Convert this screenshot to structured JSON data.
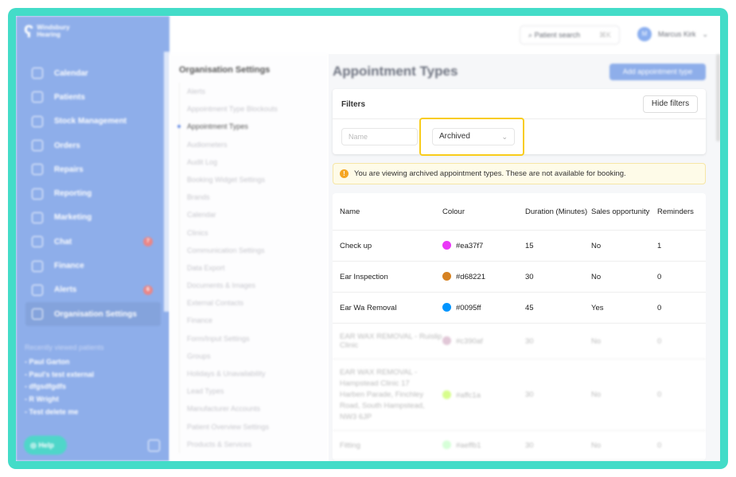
{
  "brand": {
    "name_line1": "Windsbury",
    "name_line2": "Hearing"
  },
  "sidebar": {
    "items": [
      {
        "label": "Calendar",
        "icon": "calendar-icon"
      },
      {
        "label": "Patients",
        "icon": "smile-icon"
      },
      {
        "label": "Stock Management",
        "icon": "box-icon"
      },
      {
        "label": "Orders",
        "icon": "inbox-icon"
      },
      {
        "label": "Repairs",
        "icon": "wrench-icon"
      },
      {
        "label": "Reporting",
        "icon": "pie-chart-icon"
      },
      {
        "label": "Marketing",
        "icon": "mail-icon"
      },
      {
        "label": "Chat",
        "icon": "chat-icon",
        "badge": "7"
      },
      {
        "label": "Finance",
        "icon": "credit-card-icon"
      },
      {
        "label": "Alerts",
        "icon": "bell-icon",
        "badge": "6"
      },
      {
        "label": "Organisation Settings",
        "icon": "gear-icon",
        "active": true
      }
    ],
    "recent_title": "Recently viewed patients",
    "recent": [
      "- Paul Garton",
      "- Paul's test external",
      "- dfgsdfgdfs",
      "- R Wright",
      "- Test delete me"
    ],
    "help": "Help"
  },
  "header": {
    "search_label": "Patient search",
    "search_shortcut": "⌘K",
    "user_initial": "M",
    "user_name": "Marcus Kirk"
  },
  "settings": {
    "title": "Organisation Settings",
    "items": [
      "Alerts",
      "Appointment Type Blockouts",
      "Appointment Types",
      "Audiometers",
      "Audit Log",
      "Booking Widget Settings",
      "Brands",
      "Calendar",
      "Clinics",
      "Communication Settings",
      "Data Export",
      "Documents & Images",
      "External Contacts",
      "Finance",
      "Form/Input Settings",
      "Groups",
      "Holidays & Unavailability",
      "Lead Types",
      "Manufacturer Accounts",
      "Patient Overview Settings",
      "Products & Services"
    ],
    "active": "Appointment Types"
  },
  "main": {
    "title": "Appointment Types",
    "add_button": "Add appointment type",
    "filters": {
      "label": "Filters",
      "hide_button": "Hide filters",
      "name_placeholder": "Name",
      "status_value": "Archived"
    },
    "warning": "You are viewing archived appointment types. These are not available for booking.",
    "columns": [
      "Name",
      "Colour",
      "Duration (Minutes)",
      "Sales opportunity",
      "Reminders"
    ],
    "rows": [
      {
        "name": "Check up",
        "colour": "#ea37f7",
        "duration": "15",
        "sales": "No",
        "reminders": "1"
      },
      {
        "name": "Ear Inspection",
        "colour": "#d68221",
        "duration": "30",
        "sales": "No",
        "reminders": "0"
      },
      {
        "name": "Ear Wa Removal",
        "colour": "#0095ff",
        "duration": "45",
        "sales": "Yes",
        "reminders": "0"
      },
      {
        "name": "EAR WAX REMOVAL - Ruislip Clinic",
        "colour": "#c390af",
        "duration": "30",
        "sales": "No",
        "reminders": "0"
      },
      {
        "name": "EAR WAX REMOVAL - Hampstead Clinic 17 Harben Parade, Finchley Road, South Hampstead, NW3 6JP",
        "colour": "#affc1a",
        "duration": "30",
        "sales": "No",
        "reminders": "0"
      },
      {
        "name": "Fitting",
        "colour": "#aeffb1",
        "duration": "30",
        "sales": "No",
        "reminders": "0"
      }
    ]
  },
  "colors": {
    "frame": "#43dcc8",
    "sidebar": "#8eaeea",
    "highlight": "#f8cc1b",
    "warning_bg": "#fefbe8"
  }
}
